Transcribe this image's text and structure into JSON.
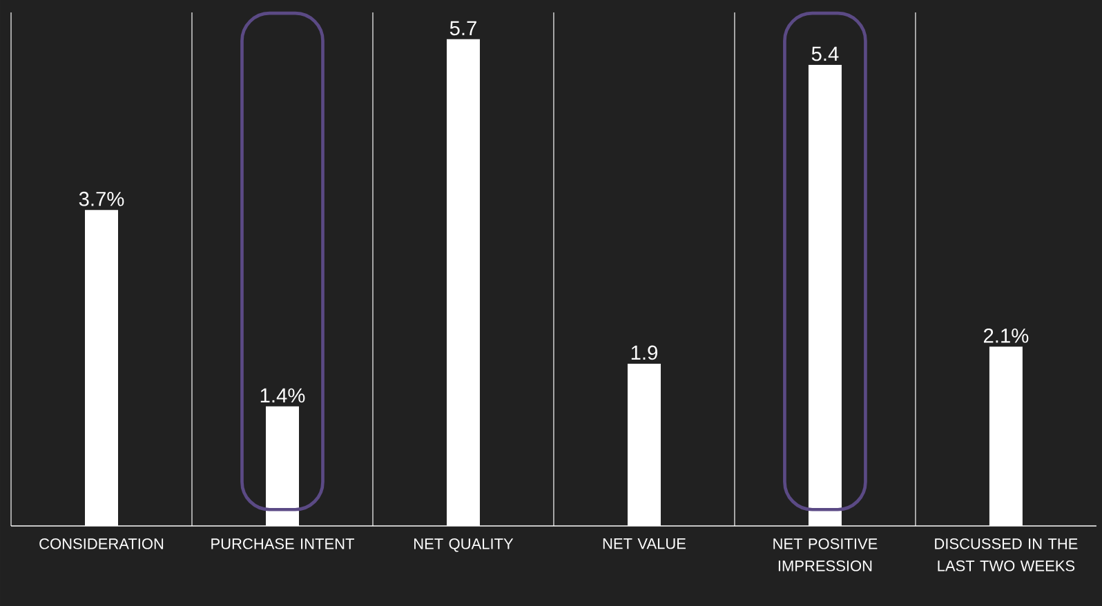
{
  "chart_data": {
    "type": "bar",
    "categories": [
      "CONSIDERATION",
      "PURCHASE INTENT",
      "NET QUALITY",
      "NET VALUE",
      "NET POSITIVE IMPRESSION",
      "DISCUSSED IN THE LAST TWO WEEKS"
    ],
    "values": [
      3.7,
      1.4,
      5.7,
      1.9,
      5.4,
      2.1
    ],
    "value_labels": [
      "3.7%",
      "1.4%",
      "5.7",
      "1.9",
      "5.4",
      "2.1%"
    ],
    "color": "#ffffff",
    "grid": "x"
  }
}
